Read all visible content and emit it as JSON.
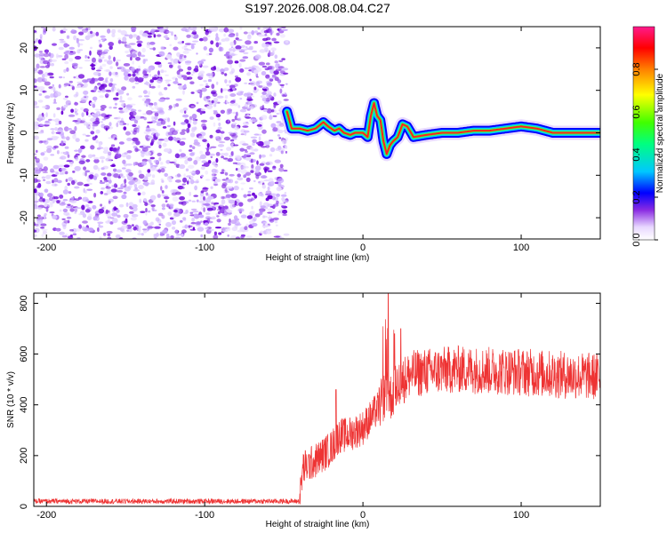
{
  "title": "S197.2026.008.08.04.C27",
  "chart_data": [
    {
      "type": "heatmap",
      "name": "spectrogram",
      "xlabel": "Height of straight line (km)",
      "ylabel": "Frequency (Hz)",
      "xlim": [
        -208,
        150
      ],
      "ylim": [
        -25,
        25
      ],
      "xticks": [
        -200,
        -100,
        0,
        100
      ],
      "yticks": [
        -20,
        -10,
        0,
        10,
        20
      ],
      "noise_region_x": [
        -208,
        -48
      ],
      "signal_ridge": {
        "x": [
          -48,
          -45,
          -40,
          -35,
          -30,
          -25,
          -22,
          -18,
          -15,
          -12,
          -8,
          -5,
          0,
          3,
          5,
          7,
          9,
          11,
          13,
          15,
          17,
          19,
          22,
          25,
          28,
          32,
          40,
          50,
          60,
          70,
          80,
          90,
          100,
          110,
          120,
          130,
          140,
          150
        ],
        "freq": [
          5,
          1,
          1,
          0.5,
          1,
          2.5,
          1.5,
          0.5,
          1,
          0,
          -0.5,
          0,
          0,
          -1,
          4,
          7,
          4,
          3,
          -2,
          -5,
          -3,
          -2,
          -1,
          2,
          1.5,
          -1,
          -0.5,
          0,
          0,
          0.5,
          0.5,
          1,
          1.5,
          1,
          0,
          0,
          0,
          0
        ]
      },
      "colorbar": {
        "label": "Normalized spectral amplitude",
        "range": [
          0,
          1
        ],
        "ticks": [
          "0.0",
          "0.2",
          "0.4",
          "0.6",
          "0.8"
        ]
      }
    },
    {
      "type": "line",
      "name": "snr",
      "xlabel": "Height of straight line (km)",
      "ylabel": "SNR (10 * v/v)",
      "xlim": [
        -208,
        150
      ],
      "ylim": [
        0,
        840
      ],
      "xticks": [
        -200,
        -100,
        0,
        100
      ],
      "yticks": [
        0,
        200,
        400,
        600,
        800
      ],
      "color": "#ee3333",
      "envelope": {
        "x": [
          -208,
          -40,
          -38,
          -30,
          -20,
          -15,
          -10,
          0,
          10,
          15,
          18,
          22,
          30,
          40,
          60,
          80,
          100,
          120,
          150
        ],
        "y": [
          20,
          20,
          150,
          180,
          230,
          280,
          280,
          310,
          390,
          450,
          430,
          480,
          520,
          530,
          540,
          535,
          530,
          520,
          510
        ]
      },
      "peaks": [
        {
          "x": 16,
          "y": 840
        },
        {
          "x": -17,
          "y": 460
        },
        {
          "x": 24,
          "y": 700
        },
        {
          "x": 20,
          "y": 680
        }
      ]
    }
  ]
}
